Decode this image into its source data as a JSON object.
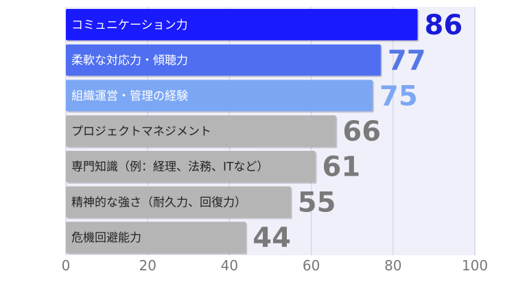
{
  "chart_data": {
    "type": "bar",
    "orientation": "horizontal",
    "categories": [
      "コミュニケーション力",
      "柔軟な対応力・傾聴力",
      "組織運営・管理の経験",
      "プロジェクトマネジメント",
      "専門知識（例：経理、法務、ITなど）",
      "精神的な強さ（耐久力、回復力）",
      "危機回避能力"
    ],
    "values": [
      86,
      77,
      75,
      66,
      61,
      55,
      44
    ],
    "xlim": [
      0,
      100
    ],
    "xticks": [
      0,
      20,
      40,
      60,
      80,
      100
    ],
    "grid": true,
    "legend": "none",
    "colors": {
      "bars": [
        "#1a1aff",
        "#4f6ff0",
        "#7ca7f5",
        "#b5b5b5",
        "#b5b5b5",
        "#b5b5b5",
        "#b5b5b5"
      ],
      "bar_text": [
        "#ffffff",
        "#ffffff",
        "#ffffff",
        "#222222",
        "#222222",
        "#222222",
        "#222222"
      ],
      "value_text": [
        "#1a1ad9",
        "#5577e6",
        "#7ca7f5",
        "#7a7a7a",
        "#7a7a7a",
        "#7a7a7a",
        "#7a7a7a"
      ],
      "plot_background": "#f0f0fa",
      "grid": "#d6d6ea"
    }
  }
}
